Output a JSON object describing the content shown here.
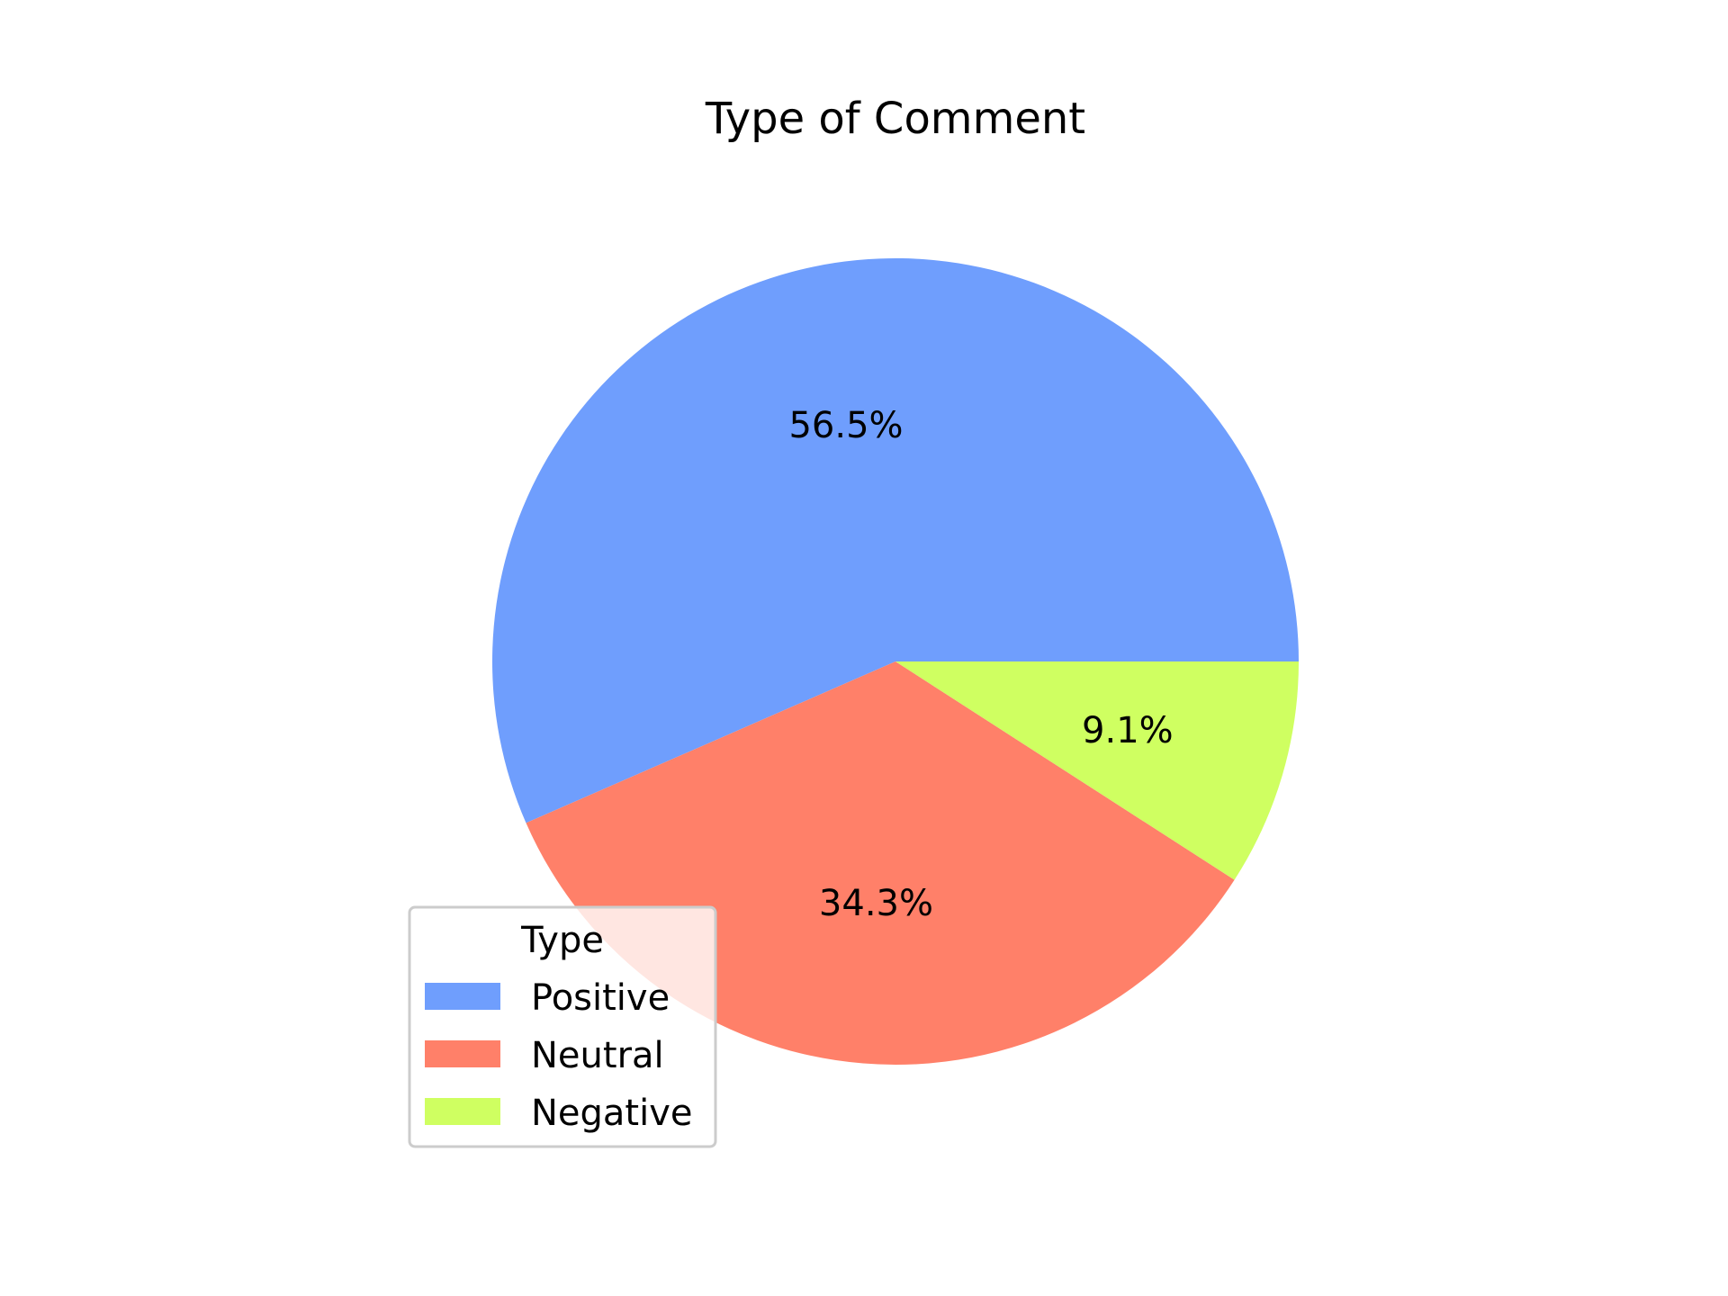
{
  "chart_data": {
    "type": "pie",
    "title": "Type of Comment",
    "categories": [
      "Positive",
      "Neutral",
      "Negative"
    ],
    "values": [
      56.5,
      34.3,
      9.1
    ],
    "labels": [
      "56.5%",
      "34.3%",
      "9.1%"
    ],
    "colors": [
      "#6f9efd",
      "#ff8069",
      "#cfff61"
    ],
    "start_angle_deg": 0,
    "direction": "counterclockwise",
    "legend": {
      "title": "Type",
      "placement": "lower-left",
      "entries": [
        "Positive",
        "Neutral",
        "Negative"
      ]
    }
  }
}
